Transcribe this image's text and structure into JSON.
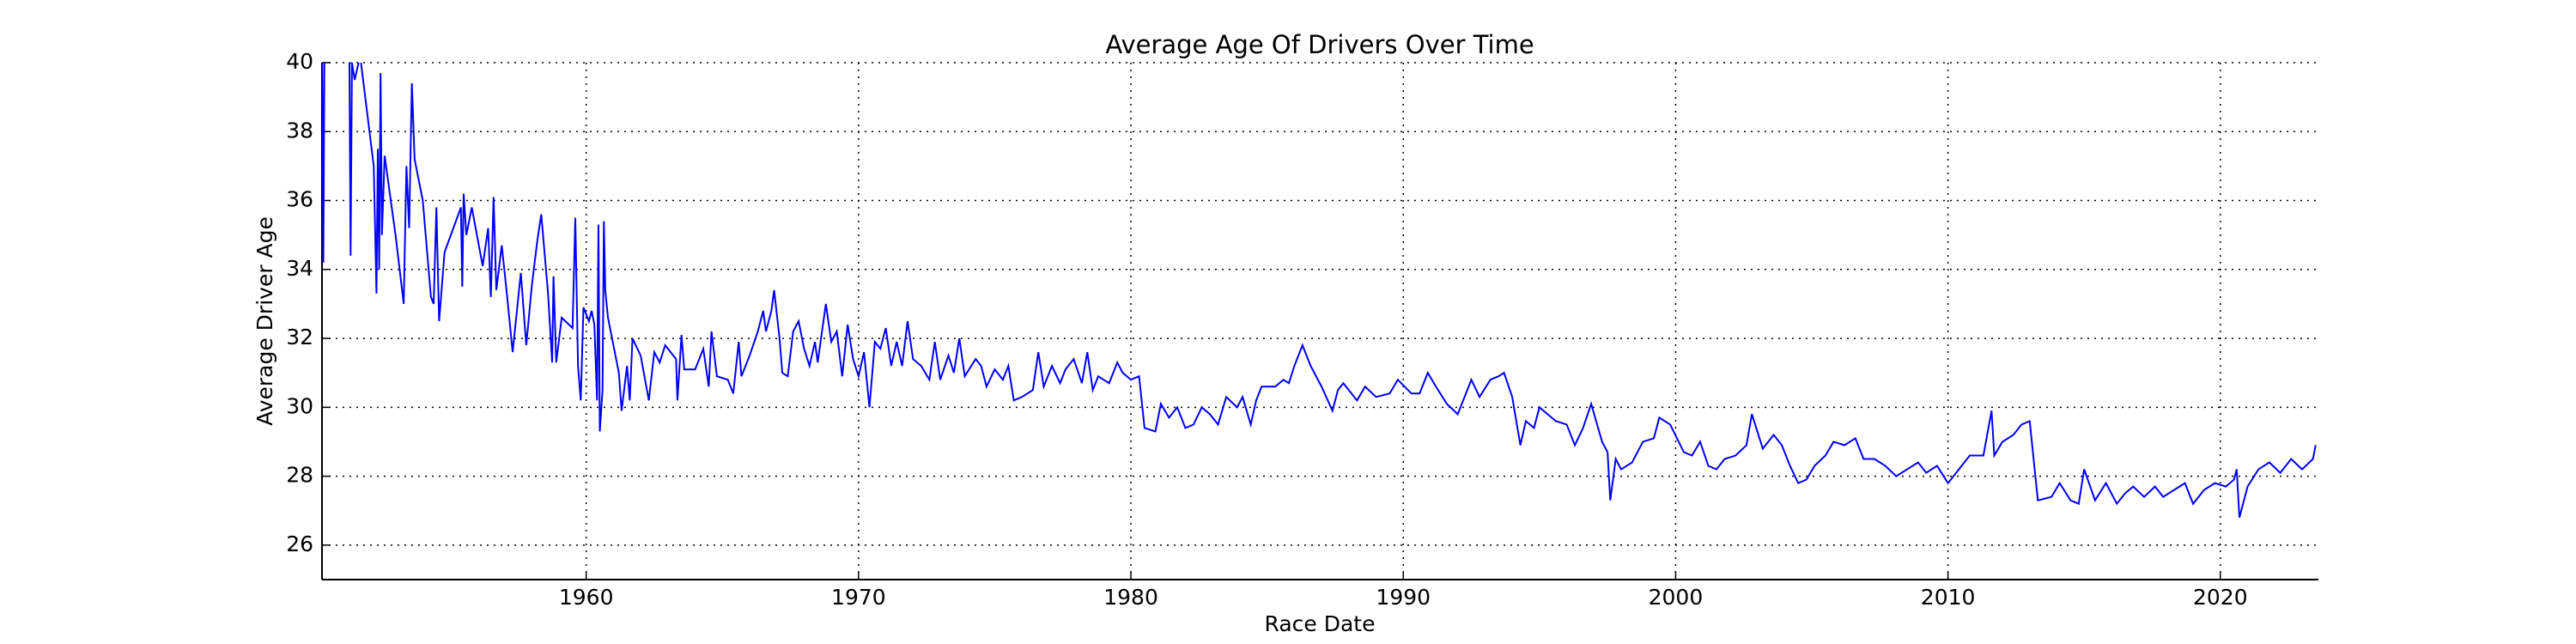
{
  "chart_data": {
    "type": "line",
    "title": "Average Age Of Drivers Over Time",
    "x_label": "Race Date",
    "y_label": "Average Driver Age",
    "xlim": [
      1950.3,
      2023.6
    ],
    "ylim": [
      25,
      40
    ],
    "xticks": [
      1960,
      1970,
      1980,
      1990,
      2000,
      2010,
      2020
    ],
    "yticks": [
      26,
      28,
      30,
      32,
      34,
      36,
      38,
      40
    ],
    "grid": true,
    "x": [
      1950.3,
      1950.35,
      1950.4,
      1951.3,
      1951.35,
      1951.4,
      1951.5,
      1951.7,
      1952.2,
      1952.3,
      1952.35,
      1952.4,
      1952.45,
      1952.5,
      1952.6,
      1953.0,
      1953.3,
      1953.4,
      1953.5,
      1953.6,
      1953.7,
      1954.0,
      1954.3,
      1954.4,
      1954.5,
      1954.6,
      1954.8,
      1955.4,
      1955.45,
      1955.5,
      1955.6,
      1955.8,
      1956.2,
      1956.4,
      1956.5,
      1956.6,
      1956.7,
      1956.9,
      1957.1,
      1957.3,
      1957.6,
      1957.8,
      1958.0,
      1958.2,
      1958.35,
      1958.6,
      1958.75,
      1958.8,
      1958.9,
      1959.1,
      1959.5,
      1959.6,
      1959.7,
      1959.8,
      1959.9,
      1960.1,
      1960.2,
      1960.3,
      1960.35,
      1960.4,
      1960.45,
      1960.5,
      1960.6,
      1960.65,
      1960.7,
      1960.8,
      1961.2,
      1961.3,
      1961.5,
      1961.6,
      1961.7,
      1962.0,
      1962.3,
      1962.5,
      1962.7,
      1962.9,
      1963.3,
      1963.35,
      1963.5,
      1963.6,
      1964.0,
      1964.3,
      1964.5,
      1964.6,
      1964.8,
      1965.2,
      1965.4,
      1965.6,
      1965.7,
      1966.0,
      1966.3,
      1966.5,
      1966.6,
      1966.8,
      1966.9,
      1967.1,
      1967.2,
      1967.4,
      1967.6,
      1967.8,
      1968.0,
      1968.2,
      1968.4,
      1968.5,
      1968.8,
      1969.0,
      1969.2,
      1969.4,
      1969.6,
      1969.8,
      1970.0,
      1970.2,
      1970.4,
      1970.6,
      1970.8,
      1971.0,
      1971.2,
      1971.4,
      1971.6,
      1971.8,
      1972.0,
      1972.3,
      1972.6,
      1972.8,
      1973.0,
      1973.3,
      1973.5,
      1973.7,
      1973.9,
      1974.3,
      1974.5,
      1974.7,
      1975.0,
      1975.3,
      1975.5,
      1975.7,
      1976.0,
      1976.4,
      1976.6,
      1976.8,
      1977.1,
      1977.4,
      1977.6,
      1977.9,
      1978.2,
      1978.4,
      1978.6,
      1978.8,
      1979.2,
      1979.5,
      1979.7,
      1980.0,
      1980.3,
      1980.5,
      1980.9,
      1981.1,
      1981.4,
      1981.7,
      1982.0,
      1982.3,
      1982.6,
      1982.9,
      1983.2,
      1983.5,
      1983.9,
      1984.1,
      1984.4,
      1984.6,
      1984.8,
      1985.3,
      1985.6,
      1985.8,
      1986.0,
      1986.3,
      1986.6,
      1987.0,
      1987.4,
      1987.6,
      1987.8,
      1988.3,
      1988.6,
      1989.0,
      1989.5,
      1989.8,
      1990.3,
      1990.6,
      1990.9,
      1991.2,
      1991.6,
      1992.0,
      1992.5,
      1992.8,
      1993.2,
      1993.5,
      1993.7,
      1994.0,
      1994.3,
      1994.5,
      1994.8,
      1995.0,
      1995.3,
      1995.6,
      1996.0,
      1996.3,
      1996.6,
      1996.9,
      1997.3,
      1997.5,
      1997.6,
      1997.8,
      1998.0,
      1998.4,
      1998.8,
      1999.2,
      1999.4,
      1999.8,
      2000.3,
      2000.6,
      2000.9,
      2001.2,
      2001.5,
      2001.8,
      2002.2,
      2002.6,
      2002.8,
      2003.2,
      2003.6,
      2003.9,
      2004.2,
      2004.5,
      2004.8,
      2005.1,
      2005.5,
      2005.8,
      2006.2,
      2006.6,
      2006.9,
      2007.3,
      2007.7,
      2008.1,
      2008.5,
      2008.9,
      2009.2,
      2009.6,
      2010.0,
      2010.4,
      2010.8,
      2011.3,
      2011.6,
      2011.7,
      2012.0,
      2012.4,
      2012.7,
      2013.0,
      2013.3,
      2013.8,
      2014.1,
      2014.5,
      2014.8,
      2015.0,
      2015.4,
      2015.8,
      2016.2,
      2016.5,
      2016.8,
      2017.2,
      2017.6,
      2017.9,
      2018.3,
      2018.7,
      2019.0,
      2019.4,
      2019.8,
      2020.2,
      2020.5,
      2020.6,
      2020.7,
      2021.0,
      2021.4,
      2021.8,
      2022.2,
      2022.6,
      2023.0,
      2023.4,
      2023.5
    ],
    "series": [
      {
        "color": "#0000ff",
        "values": [
          41,
          34.2,
          42,
          41,
          34.4,
          40,
          39.5,
          40.2,
          37,
          33.3,
          37.5,
          34,
          39.7,
          35,
          37.3,
          35,
          33,
          37,
          35.2,
          39.4,
          37.2,
          36,
          33.2,
          33,
          35.8,
          32.5,
          34.5,
          35.8,
          33.5,
          36.2,
          35,
          35.8,
          34.1,
          35.2,
          33.2,
          36.1,
          33.4,
          34.7,
          33.2,
          31.6,
          33.9,
          31.8,
          33.5,
          34.8,
          35.6,
          33.3,
          31.3,
          33.8,
          31.3,
          32.6,
          32.3,
          35.5,
          31.2,
          30.2,
          32.9,
          32.5,
          32.8,
          32.4,
          31.3,
          30.2,
          35.3,
          29.3,
          30.5,
          35.4,
          33.4,
          32.6,
          31,
          29.9,
          31.2,
          30.2,
          32,
          31.5,
          30.2,
          31.6,
          31.3,
          31.8,
          31.4,
          30.2,
          32.1,
          31.1,
          31.1,
          31.7,
          30.6,
          32.2,
          30.9,
          30.8,
          30.4,
          31.9,
          30.9,
          31.5,
          32.2,
          32.8,
          32.2,
          32.8,
          33.4,
          32,
          31,
          30.9,
          32.2,
          32.5,
          31.7,
          31.2,
          31.9,
          31.3,
          33,
          31.9,
          32.2,
          30.9,
          32.4,
          31.4,
          30.9,
          31.6,
          30,
          31.9,
          31.7,
          32.3,
          31.2,
          31.9,
          31.2,
          32.5,
          31.4,
          31.2,
          30.8,
          31.9,
          30.8,
          31.5,
          31,
          32,
          30.9,
          31.4,
          31.2,
          30.6,
          31.1,
          30.8,
          31.2,
          30.2,
          30.3,
          30.5,
          31.6,
          30.6,
          31.2,
          30.7,
          31.1,
          31.4,
          30.7,
          31.6,
          30.5,
          30.9,
          30.7,
          31.3,
          31,
          30.8,
          30.9,
          29.4,
          29.3,
          30.1,
          29.7,
          30,
          29.4,
          29.5,
          30,
          29.8,
          29.5,
          30.3,
          30,
          30.3,
          29.5,
          30.2,
          30.6,
          30.6,
          30.8,
          30.7,
          31.2,
          31.8,
          31.2,
          30.6,
          29.9,
          30.5,
          30.7,
          30.2,
          30.6,
          30.3,
          30.4,
          30.8,
          30.4,
          30.4,
          31,
          30.6,
          30.1,
          29.8,
          30.8,
          30.3,
          30.8,
          30.9,
          31,
          30.3,
          28.9,
          29.6,
          29.4,
          30,
          29.8,
          29.6,
          29.5,
          28.9,
          29.4,
          30.1,
          29,
          28.7,
          27.3,
          28.5,
          28.2,
          28.4,
          29,
          29.1,
          29.7,
          29.5,
          28.7,
          28.6,
          29,
          28.3,
          28.2,
          28.5,
          28.6,
          28.9,
          29.8,
          28.8,
          29.2,
          28.9,
          28.3,
          27.8,
          27.9,
          28.3,
          28.6,
          29,
          28.9,
          29.1,
          28.5,
          28.5,
          28.3,
          28,
          28.2,
          28.4,
          28.1,
          28.3,
          27.8,
          28.2,
          28.6,
          28.6,
          29.9,
          28.6,
          29,
          29.2,
          29.5,
          29.6,
          27.3,
          27.4,
          27.8,
          27.3,
          27.2,
          28.2,
          27.3,
          27.8,
          27.2,
          27.5,
          27.7,
          27.4,
          27.7,
          27.4,
          27.6,
          27.8,
          27.2,
          27.6,
          27.8,
          27.7,
          27.9,
          28.2,
          26.8,
          27.7,
          28.2,
          28.4,
          28.1,
          28.5,
          28.2,
          28.5,
          28.9
        ]
      }
    ]
  }
}
